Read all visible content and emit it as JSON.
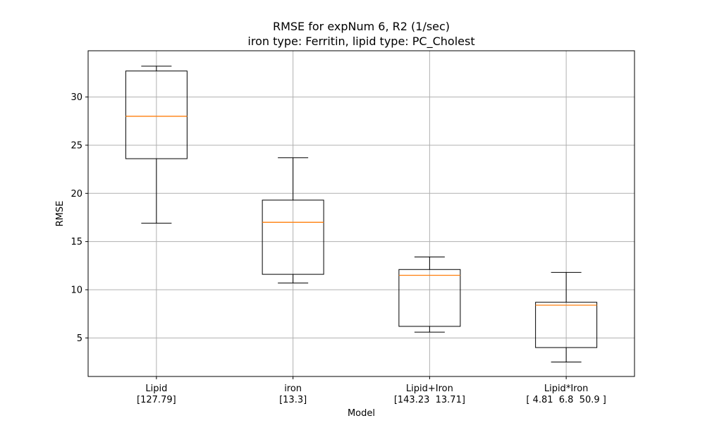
{
  "chart_data": {
    "type": "box",
    "title": "RMSE for expNum 6, R2 (1/sec)",
    "subtitle": "iron type: Ferritin, lipid type: PC_Cholest",
    "xlabel": "Model",
    "ylabel": "RMSE",
    "ylim": [
      1.0,
      34.8
    ],
    "yticks": [
      5,
      10,
      15,
      20,
      25,
      30
    ],
    "grid": true,
    "categories": [
      {
        "label": "Lipid",
        "sublabel": "[127.79]"
      },
      {
        "label": "iron",
        "sublabel": "[13.3]"
      },
      {
        "label": "Lipid+Iron",
        "sublabel": "[143.23  13.71]"
      },
      {
        "label": "Lipid*Iron",
        "sublabel": "[ 4.81  6.8  50.9 ]"
      }
    ],
    "boxes": [
      {
        "whisker_low": 16.9,
        "q1": 23.6,
        "median": 28.0,
        "q3": 32.7,
        "whisker_high": 33.2
      },
      {
        "whisker_low": 10.7,
        "q1": 11.6,
        "median": 17.0,
        "q3": 19.3,
        "whisker_high": 23.7
      },
      {
        "whisker_low": 5.6,
        "q1": 6.2,
        "median": 11.5,
        "q3": 12.1,
        "whisker_high": 13.4
      },
      {
        "whisker_low": 2.5,
        "q1": 4.0,
        "median": 8.4,
        "q3": 8.7,
        "whisker_high": 11.8
      }
    ],
    "colors": {
      "box": "#000000",
      "median": "#ff7f0e",
      "grid": "#b0b0b0"
    }
  }
}
